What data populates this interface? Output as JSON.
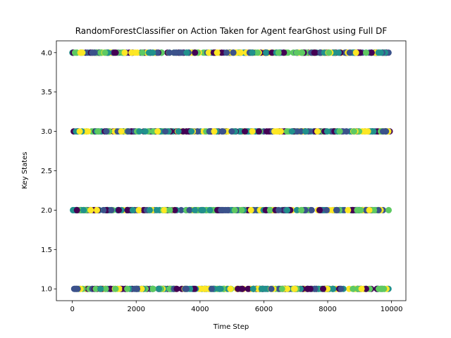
{
  "chart_data": {
    "type": "scatter",
    "title": "RandomForestClassifier on Action Taken for Agent fearGhost using Full DF",
    "xlabel": "Time Step",
    "ylabel": "Key States",
    "xlim": [
      -500,
      10450
    ],
    "ylim": [
      0.85,
      4.15
    ],
    "x_ticks": [
      0,
      2000,
      4000,
      6000,
      8000,
      10000
    ],
    "x_tick_labels": [
      "0",
      "2000",
      "4000",
      "6000",
      "8000",
      "10000"
    ],
    "y_ticks": [
      1.0,
      1.5,
      2.0,
      2.5,
      3.0,
      3.5,
      4.0
    ],
    "y_tick_labels": [
      "1.0",
      "1.5",
      "2.0",
      "2.5",
      "3.0",
      "3.5",
      "4.0"
    ],
    "grid": false,
    "legend": "none",
    "key_state_levels": [
      1,
      2,
      3,
      4
    ],
    "x_range": [
      0,
      9950
    ],
    "colormap": "viridis",
    "class_colors": [
      "#440154",
      "#3b528b",
      "#21918c",
      "#5ec962",
      "#fde725"
    ],
    "points_per_level": 320
  }
}
